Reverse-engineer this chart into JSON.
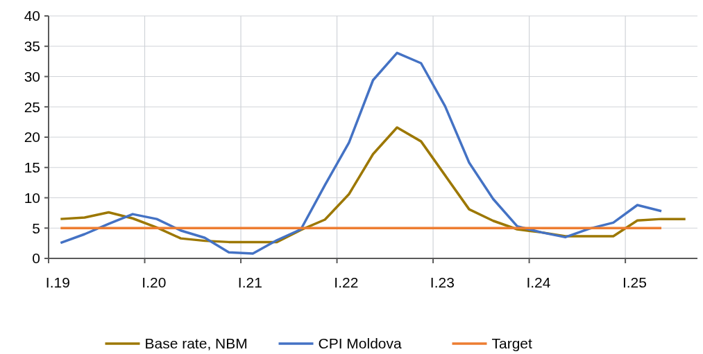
{
  "chart_data": {
    "type": "line",
    "categories": [
      "I.19",
      null,
      null,
      null,
      "I.20",
      null,
      null,
      null,
      "I.21",
      null,
      null,
      null,
      "I.22",
      null,
      null,
      null,
      "I.23",
      null,
      null,
      null,
      "I.24",
      null,
      null,
      null,
      "I.25",
      null,
      null
    ],
    "series": [
      {
        "name": "Base rate, NBM",
        "color": "#9c7700",
        "values": [
          6.5,
          6.75,
          7.6,
          6.6,
          5.1,
          3.3,
          2.9,
          2.7,
          2.7,
          2.7,
          4.7,
          6.4,
          10.6,
          17.2,
          21.6,
          19.3,
          13.7,
          8.1,
          6.2,
          4.8,
          4.3,
          3.65,
          3.65,
          3.65,
          6.25,
          6.5,
          6.5
        ]
      },
      {
        "name": "CPI Moldova",
        "color": "#4472c4",
        "values": [
          2.55,
          4.0,
          5.7,
          7.3,
          6.5,
          4.6,
          3.4,
          1.0,
          0.8,
          3.0,
          4.8,
          12.1,
          19.1,
          29.4,
          33.9,
          32.2,
          25.1,
          15.8,
          9.8,
          5.3,
          4.3,
          3.5,
          4.9,
          5.9,
          8.8,
          7.8,
          null
        ]
      },
      {
        "name": "Target",
        "color": "#ed7d31",
        "values": [
          5,
          5,
          5,
          5,
          5,
          5,
          5,
          5,
          5,
          5,
          5,
          5,
          5,
          5,
          5,
          5,
          5,
          5,
          5,
          5,
          5,
          5,
          5,
          5,
          5,
          5,
          null
        ]
      }
    ],
    "ylim": [
      0,
      40
    ],
    "yticks": [
      0,
      5,
      10,
      15,
      20,
      25,
      30,
      35,
      40
    ],
    "grid": true,
    "legend": "bottom",
    "marker": "none",
    "line_style": "solid"
  }
}
